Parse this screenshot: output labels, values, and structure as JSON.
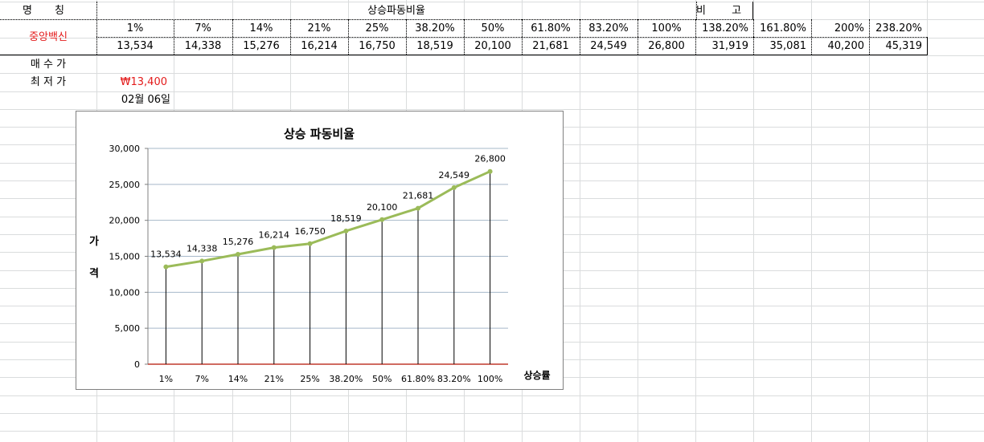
{
  "sheet": {
    "label_name": "명 칭",
    "label_stock": "중앙백신",
    "label_ratio_header": "상승파동비율",
    "label_remark": "비 고",
    "label_buy_price": "매 수 가",
    "label_low_price": "최 저 가",
    "low_price_value": "₩13,400",
    "date_value": "02월 06일",
    "percent_headers": [
      "1%",
      "7%",
      "14%",
      "21%",
      "25%",
      "38.20%",
      "50%",
      "61.80%",
      "83.20%",
      "100%",
      "138.20%",
      "161.80%",
      "200%",
      "238.20%"
    ],
    "price_values": [
      "13,534",
      "14,338",
      "15,276",
      "16,214",
      "16,750",
      "18,519",
      "20,100",
      "21,681",
      "24,549",
      "26,800",
      "31,919",
      "35,081",
      "40,200",
      "45,319"
    ]
  },
  "chart_data": {
    "type": "line",
    "title": "상승 파동비율",
    "xlabel": "상승률",
    "ylabel": "가 격",
    "categories": [
      "1%",
      "7%",
      "14%",
      "21%",
      "25%",
      "38.20%",
      "50%",
      "61.80%",
      "83.20%",
      "100%"
    ],
    "values": [
      13534,
      14338,
      15276,
      16214,
      16750,
      18519,
      20100,
      21681,
      24549,
      26800
    ],
    "data_labels": [
      "13,534",
      "14,338",
      "15,276",
      "16,214",
      "16,750",
      "18,519",
      "20,100",
      "21,681",
      "24,549",
      "26,800"
    ],
    "ylim": [
      0,
      30000
    ],
    "yticks": [
      0,
      5000,
      10000,
      15000,
      20000,
      25000,
      30000
    ],
    "ytick_labels": [
      "0",
      "5,000",
      "10,000",
      "15,000",
      "20,000",
      "25,000",
      "30,000"
    ],
    "grid": true,
    "line_color": "#9bbb59",
    "drop_line_color": "#000000",
    "baseline_color": "#c0392b"
  }
}
